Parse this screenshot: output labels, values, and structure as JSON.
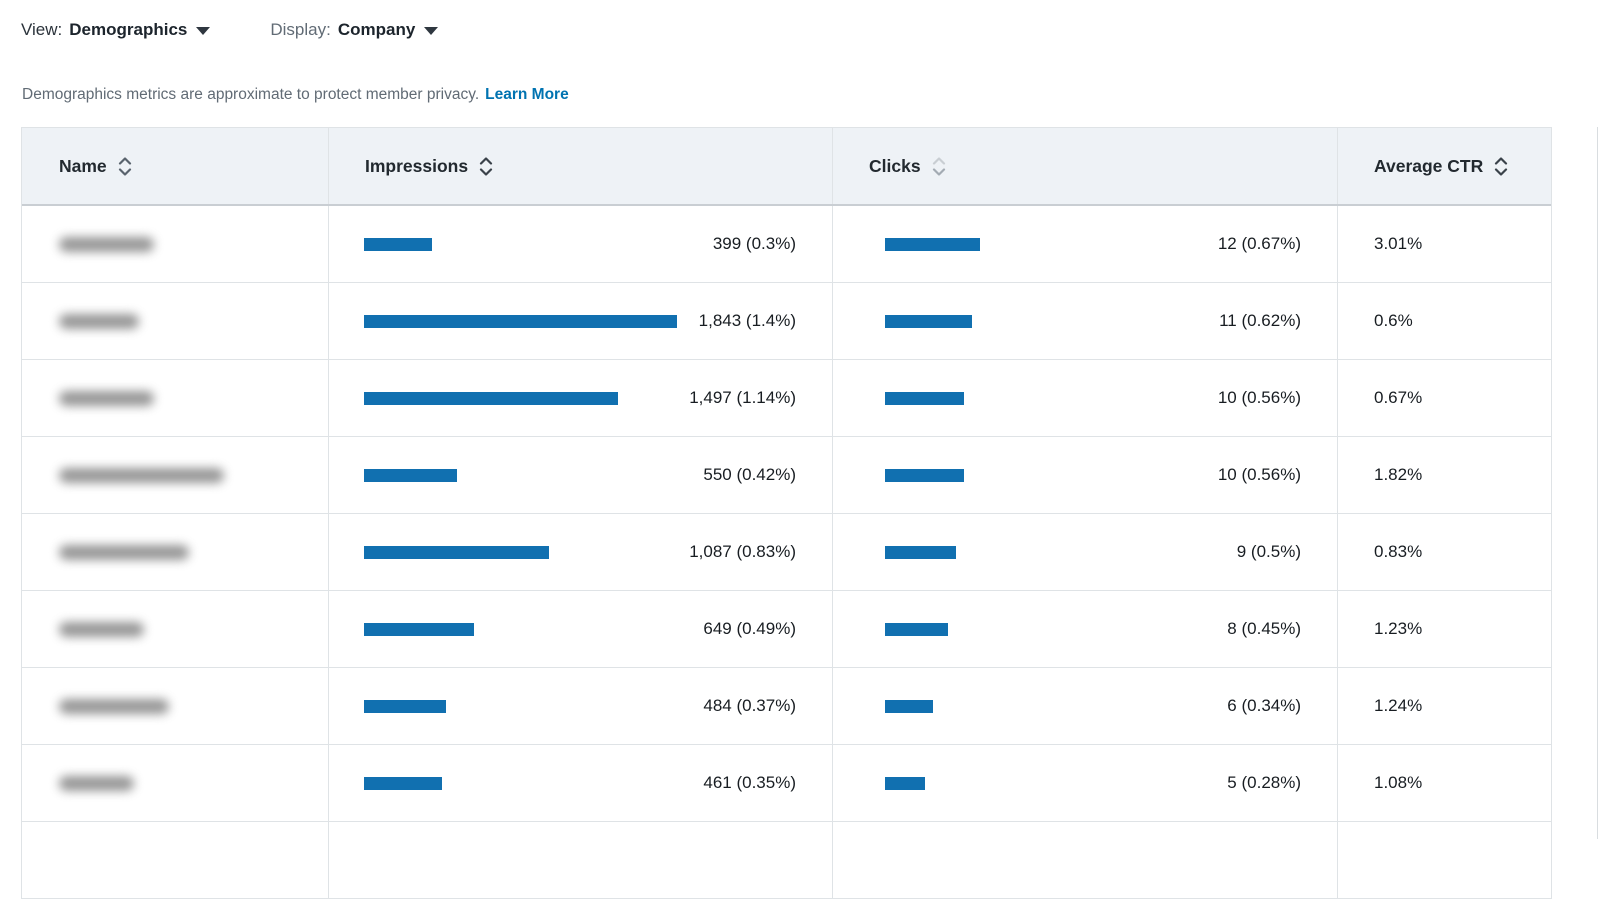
{
  "theme": {
    "bar_color": "#1170b0",
    "link_color": "#0073b1",
    "header_bg": "#eef2f6",
    "border_color": "#dfe3e6",
    "text_color": "#1a2026",
    "muted_text": "#616b75"
  },
  "toolbar": {
    "view_label": "View:",
    "view_value": "Demographics",
    "display_label": "Display:",
    "display_value": "Company"
  },
  "privacy_note": {
    "text": "Demographics metrics are approximate to protect member privacy.",
    "link_label": "Learn More"
  },
  "table": {
    "columns": [
      {
        "key": "name",
        "label": "Name",
        "sort": "mid"
      },
      {
        "key": "impressions",
        "label": "Impressions",
        "sort": "dark"
      },
      {
        "key": "clicks",
        "label": "Clicks",
        "sort": "muted"
      },
      {
        "key": "avg_ctr",
        "label": "Average CTR",
        "sort": "dark"
      }
    ],
    "impressions_max": 1843,
    "clicks_max": 12,
    "rows": [
      {
        "name_redacted_width": 95,
        "impressions": 399,
        "impressions_display": "399 (0.3%)",
        "clicks": 12,
        "clicks_display": "12 (0.67%)",
        "avg_ctr": "3.01%"
      },
      {
        "name_redacted_width": 80,
        "impressions": 1843,
        "impressions_display": "1,843 (1.4%)",
        "clicks": 11,
        "clicks_display": "11 (0.62%)",
        "avg_ctr": "0.6%"
      },
      {
        "name_redacted_width": 95,
        "impressions": 1497,
        "impressions_display": "1,497 (1.14%)",
        "clicks": 10,
        "clicks_display": "10 (0.56%)",
        "avg_ctr": "0.67%"
      },
      {
        "name_redacted_width": 165,
        "impressions": 550,
        "impressions_display": "550 (0.42%)",
        "clicks": 10,
        "clicks_display": "10 (0.56%)",
        "avg_ctr": "1.82%"
      },
      {
        "name_redacted_width": 130,
        "impressions": 1087,
        "impressions_display": "1,087 (0.83%)",
        "clicks": 9,
        "clicks_display": "9 (0.5%)",
        "avg_ctr": "0.83%"
      },
      {
        "name_redacted_width": 85,
        "impressions": 649,
        "impressions_display": "649 (0.49%)",
        "clicks": 8,
        "clicks_display": "8 (0.45%)",
        "avg_ctr": "1.23%"
      },
      {
        "name_redacted_width": 110,
        "impressions": 484,
        "impressions_display": "484 (0.37%)",
        "clicks": 6,
        "clicks_display": "6 (0.34%)",
        "avg_ctr": "1.24%"
      },
      {
        "name_redacted_width": 75,
        "impressions": 461,
        "impressions_display": "461 (0.35%)",
        "clicks": 5,
        "clicks_display": "5 (0.28%)",
        "avg_ctr": "1.08%"
      }
    ],
    "partial_row": true
  }
}
